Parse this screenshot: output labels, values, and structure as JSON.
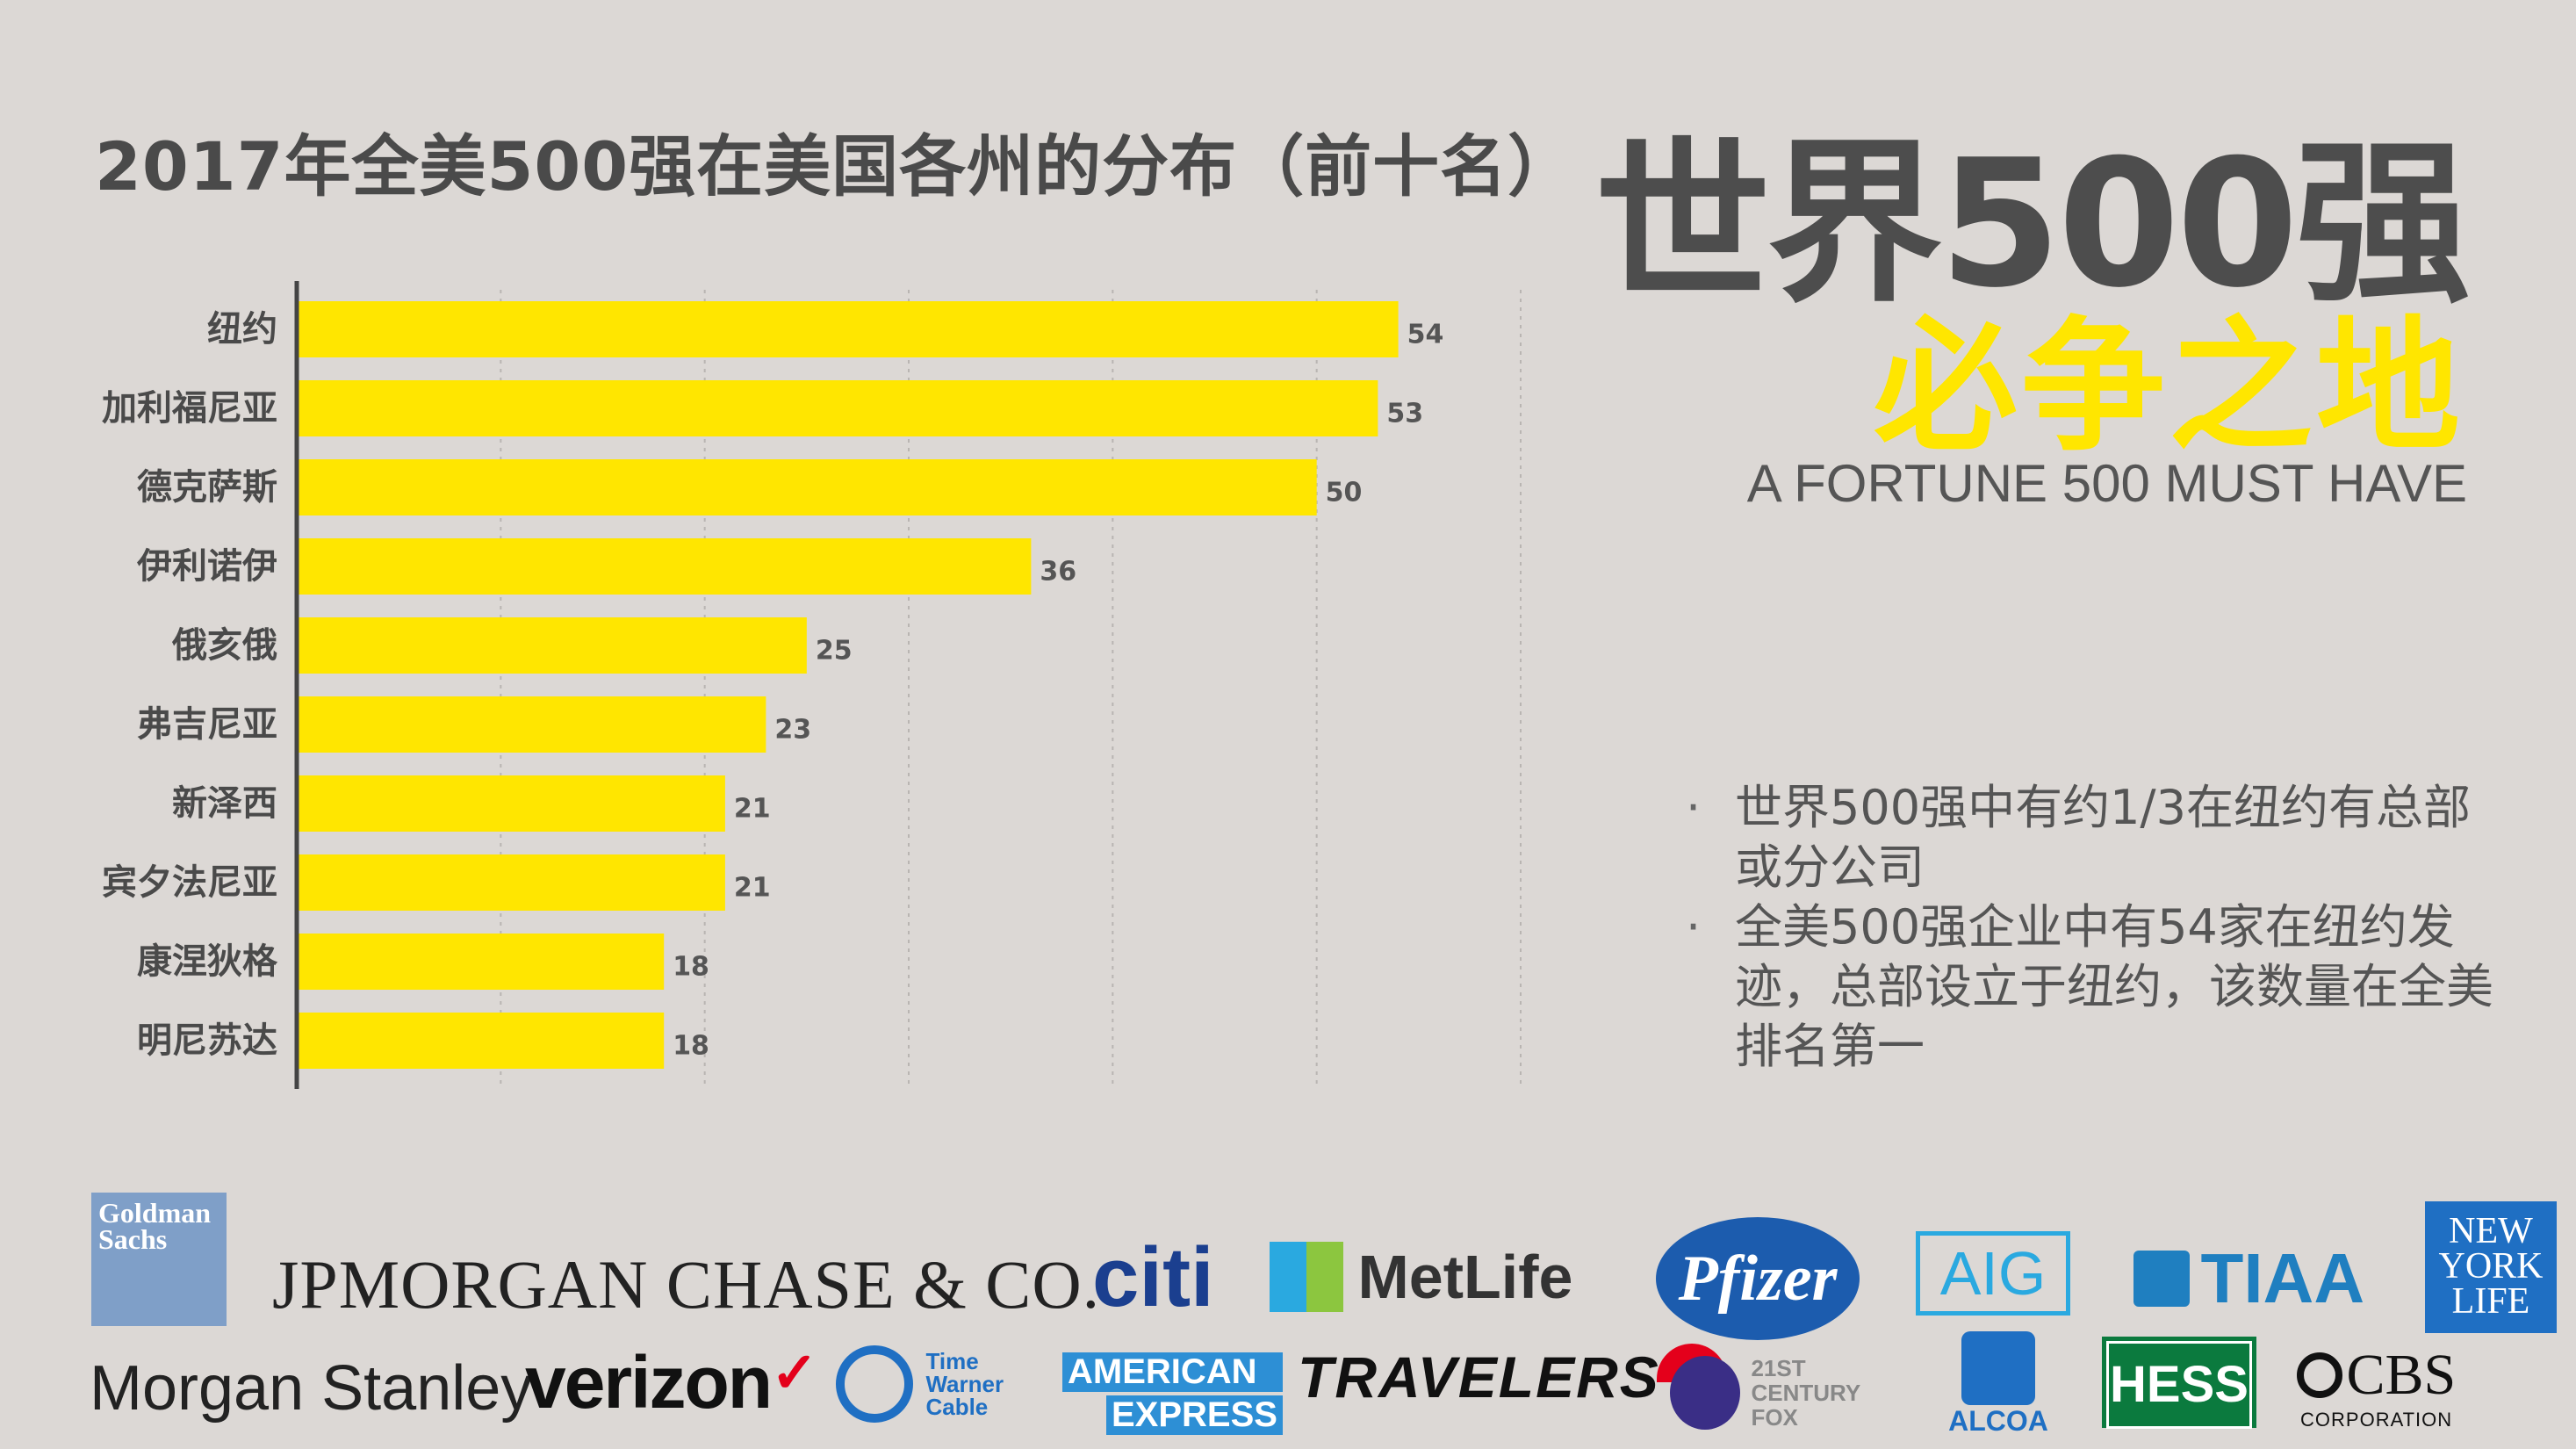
{
  "chart_title": "2017年全美500强在美国各州的分布（前十名）",
  "headline": "世界500强",
  "subheadline": "必争之地",
  "tagline": "A FORTUNE 500 MUST HAVE",
  "bullets": [
    "世界500强中有约1/3在纽约有总部或分公司",
    "全美500强企业中有54家在纽约发迹，总部设立于纽约，该数量在全美排名第一"
  ],
  "logos": {
    "goldman": "Goldman Sachs",
    "jpmorgan": "JPMORGAN CHASE & CO.",
    "citi": "citi",
    "metlife": "MetLife",
    "pfizer": "Pfizer",
    "aig": "AIG",
    "tiaa": "TIAA",
    "nylife": "NEW YORK LIFE",
    "morgan_stanley": "Morgan Stanley",
    "verizon": "verizon",
    "twc": "Time Warner Cable",
    "amex_1": "AMERICAN",
    "amex_2": "EXPRESS",
    "travelers": "TRAVELERS",
    "fox": "21ST CENTURY FOX",
    "alcoa": "ALCOA",
    "hess": "HESS",
    "cbs": "CBS",
    "cbs_sub": "CORPORATION"
  },
  "colors": {
    "bar": "#ffe600",
    "background": "#dcd8d5",
    "text": "#4a4a4a"
  },
  "chart_data": {
    "type": "bar",
    "orientation": "horizontal",
    "categories": [
      "纽约",
      "加利福尼亚",
      "德克萨斯",
      "伊利诺伊",
      "俄亥俄",
      "弗吉尼亚",
      "新泽西",
      "宾夕法尼亚",
      "康涅狄格",
      "明尼苏达"
    ],
    "values": [
      54,
      53,
      50,
      36,
      25,
      23,
      21,
      21,
      18,
      18
    ],
    "xlim": [
      0,
      60
    ],
    "grid": true,
    "data_labels": true
  }
}
